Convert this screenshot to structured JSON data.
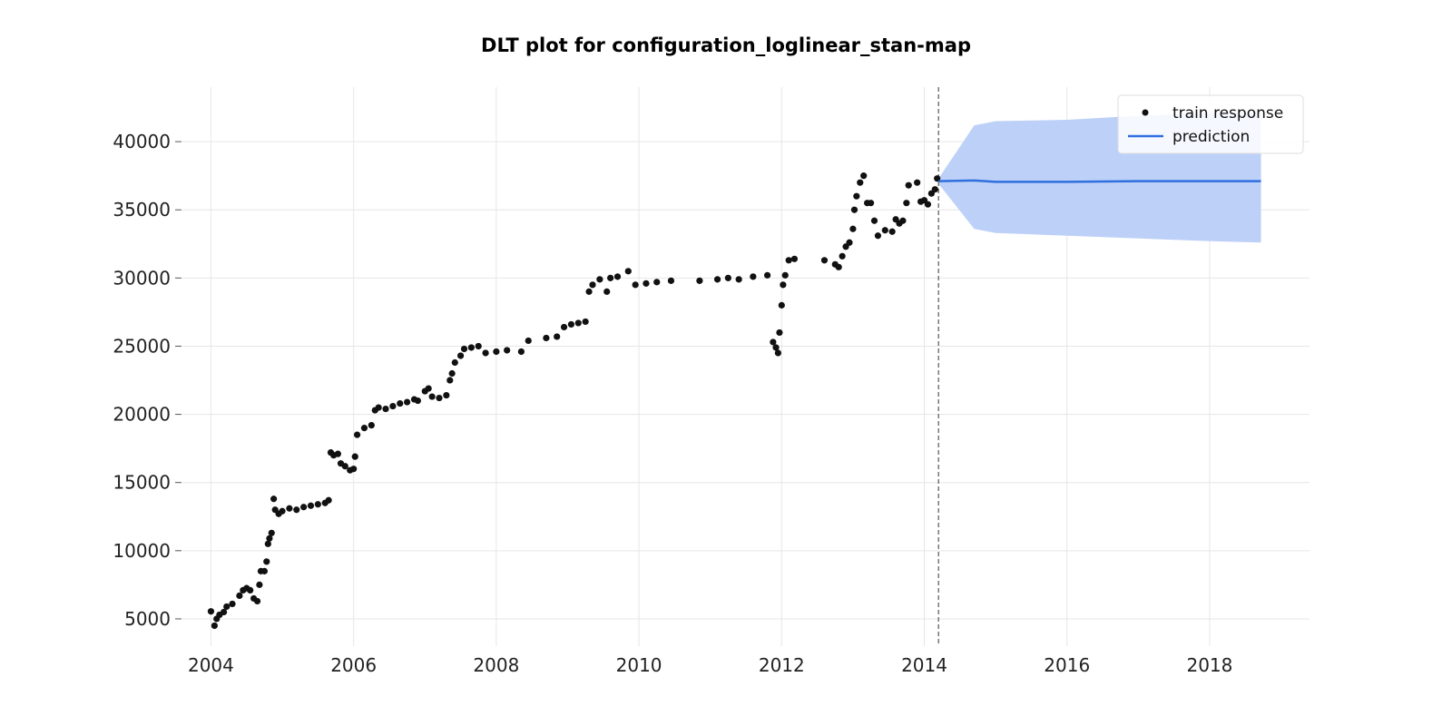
{
  "chart_data": {
    "type": "scatter",
    "title": "DLT plot for configuration_loglinear_stan-map",
    "xlabel": "",
    "ylabel": "",
    "xlim": [
      2003.6,
      2019.4
    ],
    "ylim": [
      3000,
      44000
    ],
    "x_ticks": [
      "2004",
      "2006",
      "2008",
      "2010",
      "2012",
      "2014",
      "2016",
      "2018"
    ],
    "y_ticks": [
      "5000",
      "10000",
      "15000",
      "20000",
      "25000",
      "30000",
      "35000",
      "40000"
    ],
    "grid": true,
    "legend": {
      "position": "top-right",
      "entries": [
        "train response",
        "prediction"
      ]
    },
    "train_end": 2014.2,
    "colors": {
      "points": "#111111",
      "prediction": "#2f6fde",
      "band": "#bdd1f8",
      "cutoff": "#777777"
    },
    "series": [
      {
        "name": "train response",
        "type": "scatter",
        "points": [
          [
            2004.0,
            5550
          ],
          [
            2004.05,
            4500
          ],
          [
            2004.08,
            5000
          ],
          [
            2004.12,
            5300
          ],
          [
            2004.18,
            5500
          ],
          [
            2004.22,
            5900
          ],
          [
            2004.3,
            6100
          ],
          [
            2004.4,
            6700
          ],
          [
            2004.45,
            7100
          ],
          [
            2004.5,
            7250
          ],
          [
            2004.55,
            7100
          ],
          [
            2004.6,
            6500
          ],
          [
            2004.65,
            6300
          ],
          [
            2004.68,
            7500
          ],
          [
            2004.7,
            8500
          ],
          [
            2004.75,
            8500
          ],
          [
            2004.78,
            9200
          ],
          [
            2004.8,
            10500
          ],
          [
            2004.82,
            10900
          ],
          [
            2004.85,
            11300
          ],
          [
            2004.88,
            13800
          ],
          [
            2004.9,
            13000
          ],
          [
            2004.95,
            12700
          ],
          [
            2005.0,
            12900
          ],
          [
            2005.1,
            13100
          ],
          [
            2005.2,
            13000
          ],
          [
            2005.3,
            13200
          ],
          [
            2005.4,
            13300
          ],
          [
            2005.5,
            13400
          ],
          [
            2005.6,
            13500
          ],
          [
            2005.65,
            13700
          ],
          [
            2005.68,
            17200
          ],
          [
            2005.72,
            17000
          ],
          [
            2005.78,
            17100
          ],
          [
            2005.82,
            16400
          ],
          [
            2005.88,
            16200
          ],
          [
            2005.95,
            15900
          ],
          [
            2006.0,
            16000
          ],
          [
            2006.02,
            16900
          ],
          [
            2006.05,
            18500
          ],
          [
            2006.15,
            19000
          ],
          [
            2006.25,
            19200
          ],
          [
            2006.3,
            20300
          ],
          [
            2006.35,
            20500
          ],
          [
            2006.45,
            20400
          ],
          [
            2006.55,
            20600
          ],
          [
            2006.65,
            20800
          ],
          [
            2006.75,
            20900
          ],
          [
            2006.85,
            21100
          ],
          [
            2006.9,
            21000
          ],
          [
            2007.0,
            21700
          ],
          [
            2007.05,
            21900
          ],
          [
            2007.1,
            21300
          ],
          [
            2007.2,
            21200
          ],
          [
            2007.3,
            21400
          ],
          [
            2007.35,
            22500
          ],
          [
            2007.38,
            23000
          ],
          [
            2007.42,
            23800
          ],
          [
            2007.5,
            24300
          ],
          [
            2007.55,
            24800
          ],
          [
            2007.65,
            24900
          ],
          [
            2007.75,
            25000
          ],
          [
            2007.85,
            24500
          ],
          [
            2008.0,
            24600
          ],
          [
            2008.15,
            24700
          ],
          [
            2008.35,
            24600
          ],
          [
            2008.45,
            25400
          ],
          [
            2008.7,
            25600
          ],
          [
            2008.85,
            25700
          ],
          [
            2008.95,
            26400
          ],
          [
            2009.05,
            26600
          ],
          [
            2009.15,
            26700
          ],
          [
            2009.25,
            26800
          ],
          [
            2009.3,
            29000
          ],
          [
            2009.35,
            29500
          ],
          [
            2009.45,
            29900
          ],
          [
            2009.55,
            29000
          ],
          [
            2009.6,
            30000
          ],
          [
            2009.7,
            30100
          ],
          [
            2009.85,
            30500
          ],
          [
            2009.95,
            29500
          ],
          [
            2010.1,
            29600
          ],
          [
            2010.25,
            29700
          ],
          [
            2010.45,
            29800
          ],
          [
            2010.85,
            29800
          ],
          [
            2011.1,
            29900
          ],
          [
            2011.25,
            30000
          ],
          [
            2011.4,
            29900
          ],
          [
            2011.6,
            30100
          ],
          [
            2011.8,
            30200
          ],
          [
            2011.88,
            25300
          ],
          [
            2011.92,
            24900
          ],
          [
            2011.95,
            24500
          ],
          [
            2011.97,
            26000
          ],
          [
            2012.0,
            28000
          ],
          [
            2012.02,
            29500
          ],
          [
            2012.05,
            30200
          ],
          [
            2012.1,
            31300
          ],
          [
            2012.18,
            31400
          ],
          [
            2012.6,
            31300
          ],
          [
            2012.75,
            31000
          ],
          [
            2012.8,
            30800
          ],
          [
            2012.85,
            31600
          ],
          [
            2012.9,
            32300
          ],
          [
            2012.95,
            32600
          ],
          [
            2013.0,
            33600
          ],
          [
            2013.02,
            35000
          ],
          [
            2013.05,
            36000
          ],
          [
            2013.1,
            37000
          ],
          [
            2013.15,
            37500
          ],
          [
            2013.2,
            35500
          ],
          [
            2013.25,
            35500
          ],
          [
            2013.3,
            34200
          ],
          [
            2013.35,
            33100
          ],
          [
            2013.45,
            33500
          ],
          [
            2013.55,
            33400
          ],
          [
            2013.6,
            34300
          ],
          [
            2013.65,
            34000
          ],
          [
            2013.7,
            34200
          ],
          [
            2013.75,
            35500
          ],
          [
            2013.78,
            36800
          ],
          [
            2013.9,
            37000
          ],
          [
            2013.95,
            35600
          ],
          [
            2014.0,
            35700
          ],
          [
            2014.05,
            35400
          ],
          [
            2014.1,
            36200
          ],
          [
            2014.15,
            36500
          ],
          [
            2014.18,
            37300
          ]
        ]
      },
      {
        "name": "prediction",
        "type": "line",
        "x": [
          2014.2,
          2014.7,
          2015.0,
          2016.0,
          2017.0,
          2018.0,
          2018.72
        ],
        "y": [
          37100,
          37150,
          37050,
          37050,
          37100,
          37100,
          37100
        ],
        "upper": [
          37300,
          41200,
          41500,
          41600,
          41900,
          42100,
          42100
        ],
        "lower": [
          36900,
          33600,
          33300,
          33100,
          32900,
          32700,
          32600
        ]
      }
    ]
  }
}
